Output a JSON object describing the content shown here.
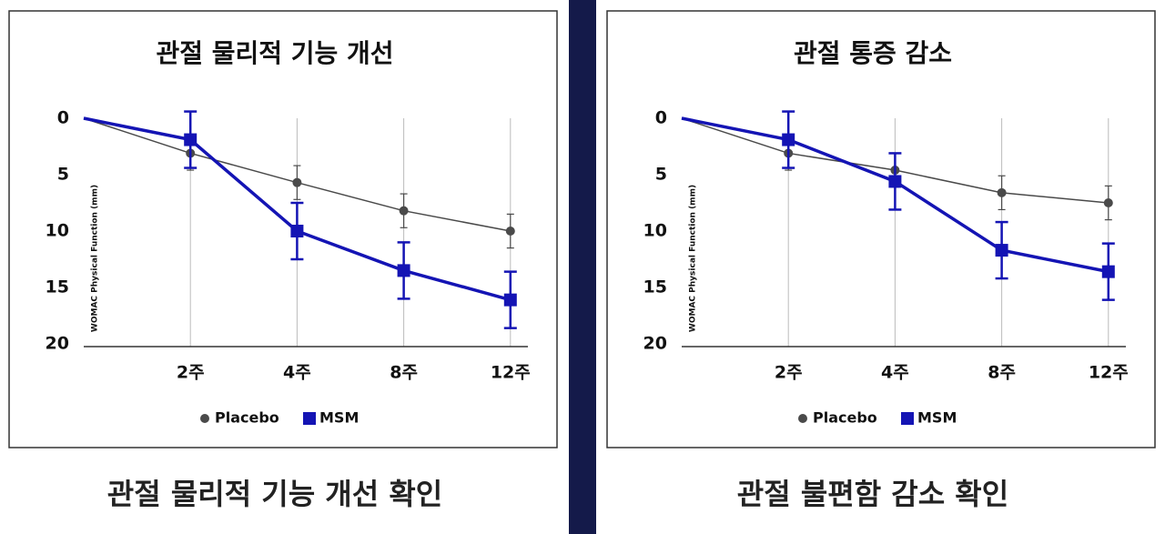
{
  "chart_data": [
    {
      "type": "line",
      "title": "관절 물리적 기능 개선",
      "caption": "관절 물리적 기능 개선 확인",
      "y_label": "WOMAC Physical Function (mm)",
      "categories": [
        null,
        "2주",
        "4주",
        "8주",
        "12주"
      ],
      "ylim": [
        20,
        0
      ],
      "yticks": [
        0,
        5,
        10,
        15,
        20
      ],
      "grid": true,
      "legend": "bottom",
      "series": [
        {
          "name": "Placebo",
          "color": "#4a4a4a",
          "marker": "circle",
          "values": [
            0,
            3.1,
            5.7,
            8.2,
            10
          ],
          "errors": [
            null,
            1.5,
            1.5,
            1.5,
            1.5
          ]
        },
        {
          "name": "MSM",
          "color": "#1414b4",
          "marker": "square",
          "values": [
            0,
            1.9,
            10,
            13.5,
            16.1
          ],
          "errors": [
            null,
            2.5,
            2.5,
            2.5,
            2.5
          ]
        }
      ]
    },
    {
      "type": "line",
      "title": "관절 통증 감소",
      "caption": "관절 불편함 감소 확인",
      "y_label": "WOMAC Physical Function (mm)",
      "categories": [
        null,
        "2주",
        "4주",
        "8주",
        "12주"
      ],
      "ylim": [
        20,
        0
      ],
      "yticks": [
        0,
        5,
        10,
        15,
        20
      ],
      "grid": true,
      "legend": "bottom",
      "series": [
        {
          "name": "Placebo",
          "color": "#4a4a4a",
          "marker": "circle",
          "values": [
            0,
            3.1,
            4.6,
            6.6,
            7.5
          ],
          "errors": [
            null,
            1.5,
            1.5,
            1.5,
            1.5
          ]
        },
        {
          "name": "MSM",
          "color": "#1414b4",
          "marker": "square",
          "values": [
            0,
            1.9,
            5.6,
            11.7,
            13.6
          ],
          "errors": [
            null,
            2.5,
            2.5,
            2.5,
            2.5
          ]
        }
      ]
    }
  ]
}
